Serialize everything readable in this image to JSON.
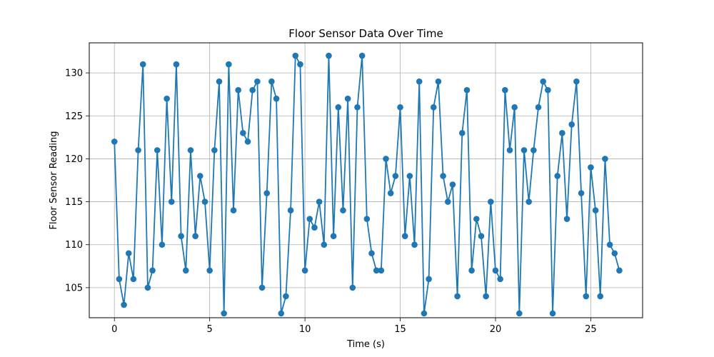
{
  "chart_data": {
    "type": "line",
    "title": "Floor Sensor Data Over Time",
    "xlabel": "Time (s)",
    "ylabel": "Floor Sensor Reading",
    "xlim": [
      -1.32,
      27.72
    ],
    "ylim": [
      101.5,
      133.5
    ],
    "xticks": [
      0,
      5,
      10,
      15,
      20,
      25
    ],
    "yticks": [
      105,
      110,
      115,
      120,
      125,
      130
    ],
    "grid": true,
    "markers": true,
    "color": "#1f77b4",
    "series": [
      {
        "x": [
          0.0,
          0.25,
          0.5,
          0.75,
          1.0,
          1.25,
          1.5,
          1.75,
          2.0,
          2.25,
          2.5,
          2.75,
          3.0,
          3.25,
          3.5,
          3.75,
          4.0,
          4.25,
          4.5,
          4.75,
          5.0,
          5.25,
          5.5,
          5.75,
          6.0,
          6.25,
          6.5,
          6.75,
          7.0,
          7.25,
          7.5,
          7.75,
          8.0,
          8.25,
          8.5,
          8.75,
          9.0,
          9.25,
          9.5,
          9.75,
          10.0,
          10.25,
          10.5,
          10.75,
          11.0,
          11.25,
          11.5,
          11.75,
          12.0,
          12.25,
          12.5,
          12.75,
          13.0,
          13.25,
          13.5,
          13.75,
          14.0,
          14.25,
          14.5,
          14.75,
          15.0,
          15.25,
          15.5,
          15.75,
          16.0,
          16.25,
          16.5,
          16.75,
          17.0,
          17.25,
          17.5,
          17.75,
          18.0,
          18.25,
          18.5,
          18.75,
          19.0,
          19.25,
          19.5,
          19.75,
          20.0,
          20.25,
          20.5,
          20.75,
          21.0,
          21.25,
          21.5,
          21.75,
          22.0,
          22.25,
          22.5,
          22.75,
          23.0,
          23.25,
          23.5,
          23.75,
          24.0,
          24.25,
          24.5,
          24.75,
          25.0,
          25.25,
          25.5,
          25.75,
          26.0,
          26.25,
          26.5
        ],
        "y": [
          122,
          106,
          103,
          109,
          106,
          121,
          131,
          105,
          107,
          121,
          110,
          127,
          115,
          131,
          111,
          107,
          121,
          111,
          118,
          115,
          107,
          121,
          129,
          102,
          131,
          114,
          128,
          123,
          122,
          128,
          129,
          105,
          116,
          129,
          127,
          102,
          104,
          114,
          132,
          131,
          107,
          113,
          112,
          115,
          110,
          132,
          111,
          126,
          114,
          127,
          105,
          126,
          132,
          113,
          109,
          107,
          107,
          120,
          116,
          118,
          126,
          111,
          118,
          110,
          129,
          102,
          106,
          126,
          129,
          118,
          115,
          117,
          104,
          123,
          128,
          107,
          113,
          111,
          104,
          115,
          107,
          106,
          128,
          121,
          126,
          102,
          121,
          115,
          121,
          126,
          129,
          128,
          102,
          118,
          123,
          113,
          124,
          129,
          116,
          104,
          119,
          114,
          104,
          120,
          110,
          109,
          107
        ]
      }
    ]
  }
}
